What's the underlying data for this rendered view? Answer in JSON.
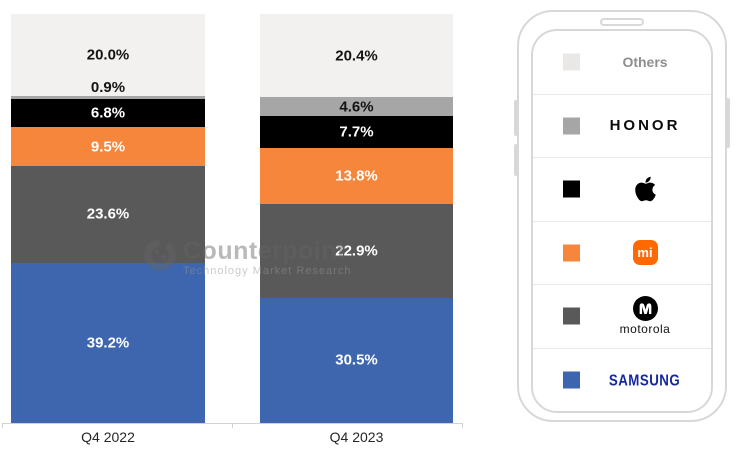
{
  "chart_data": {
    "type": "bar",
    "stacked": true,
    "unit": "%",
    "title": "",
    "categories": [
      "Q4 2022",
      "Q4 2023"
    ],
    "series": [
      {
        "name": "Samsung",
        "color": "#3d66ae",
        "label_color": "#ffffff",
        "values": [
          39.2,
          30.5
        ]
      },
      {
        "name": "Motorola",
        "color": "#595959",
        "label_color": "#ffffff",
        "values": [
          23.6,
          22.9
        ]
      },
      {
        "name": "Xiaomi",
        "color": "#f5863b",
        "label_color": "#ffffff",
        "values": [
          9.5,
          13.8
        ]
      },
      {
        "name": "Apple",
        "color": "#000000",
        "label_color": "#ffffff",
        "values": [
          6.8,
          7.7
        ]
      },
      {
        "name": "HONOR",
        "color": "#a6a6a6",
        "label_color": "#141414",
        "values": [
          0.9,
          4.6
        ]
      },
      {
        "name": "Others",
        "color": "#f2f1f0",
        "label_color": "#141414",
        "values": [
          20.0,
          20.4
        ]
      }
    ],
    "ylim": [
      0,
      100
    ],
    "grid": false,
    "legend_position": "right"
  },
  "legend": {
    "items": [
      {
        "id": "others",
        "label": "Others",
        "swatch": "#e9e8e7"
      },
      {
        "id": "honor",
        "label": "HONOR",
        "swatch": "#a6a6a6"
      },
      {
        "id": "apple",
        "label": "Apple",
        "swatch": "#000000"
      },
      {
        "id": "xiaomi",
        "label": "mi",
        "swatch": "#f5863b",
        "logo_bg": "#ff6900"
      },
      {
        "id": "motorola",
        "label": "motorola",
        "swatch": "#595959"
      },
      {
        "id": "samsung",
        "label": "SAMSUNG",
        "swatch": "#3d66ae",
        "wordmark_color": "#1428a0"
      }
    ]
  },
  "watermark": {
    "title": "Counterpoint",
    "subtitle": "Technology Market Research"
  }
}
